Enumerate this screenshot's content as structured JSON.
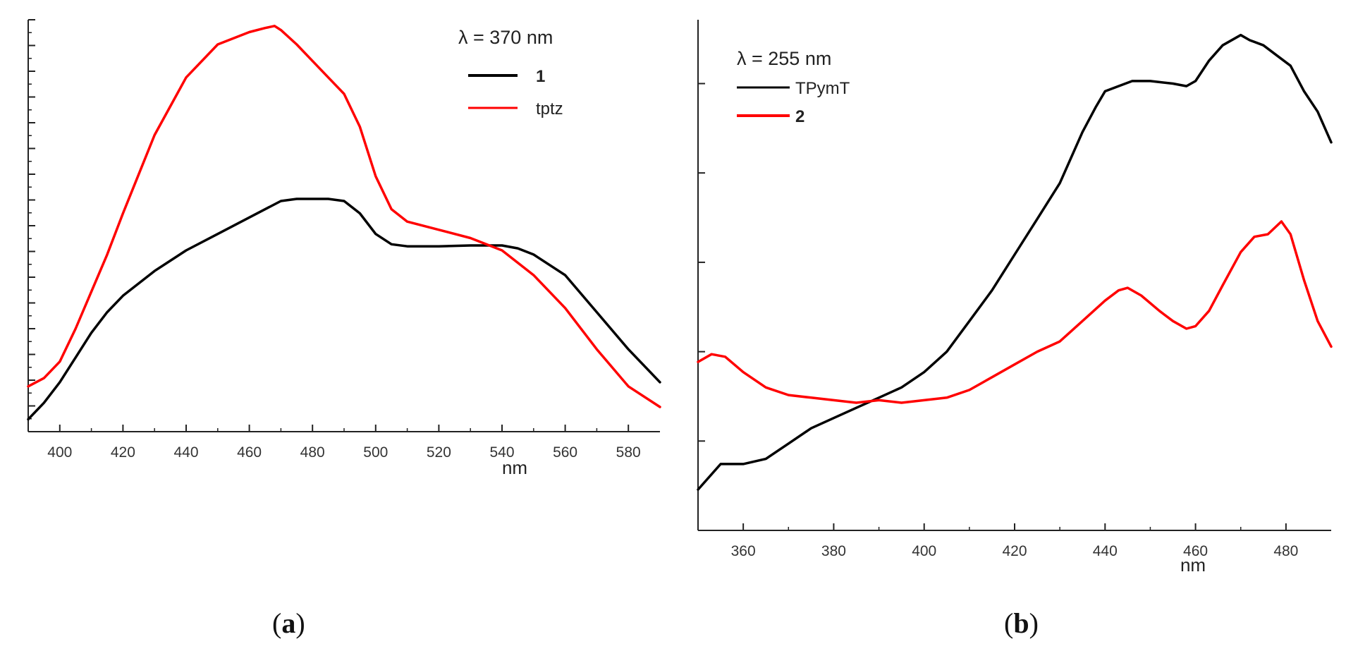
{
  "chart_data": [
    {
      "id": "a",
      "type": "line",
      "caption_letter": "a",
      "xlabel": "nm",
      "ylabel": "",
      "xlim": [
        390,
        590
      ],
      "ylim": [
        0,
        1.0
      ],
      "xticks": [
        400,
        420,
        440,
        460,
        480,
        500,
        520,
        540,
        560,
        580
      ],
      "legend": {
        "title": "λ = 370 nm",
        "position": "top-right"
      },
      "series": [
        {
          "name": "1",
          "color": "#000000",
          "bold_label": true,
          "x": [
            390,
            395,
            400,
            405,
            410,
            415,
            420,
            430,
            440,
            450,
            460,
            470,
            475,
            480,
            485,
            490,
            495,
            500,
            505,
            510,
            515,
            520,
            530,
            540,
            545,
            550,
            560,
            570,
            580,
            590
          ],
          "y": [
            0.03,
            0.07,
            0.12,
            0.18,
            0.24,
            0.29,
            0.33,
            0.39,
            0.44,
            0.48,
            0.52,
            0.56,
            0.565,
            0.565,
            0.565,
            0.56,
            0.53,
            0.48,
            0.455,
            0.45,
            0.45,
            0.45,
            0.452,
            0.452,
            0.445,
            0.43,
            0.38,
            0.29,
            0.2,
            0.12
          ]
        },
        {
          "name": "tptz",
          "color": "#ff0000",
          "bold_label": false,
          "x": [
            390,
            395,
            400,
            405,
            410,
            415,
            420,
            430,
            440,
            450,
            460,
            465,
            468,
            470,
            475,
            480,
            485,
            490,
            495,
            500,
            505,
            510,
            520,
            530,
            540,
            550,
            560,
            570,
            580,
            590
          ],
          "y": [
            0.11,
            0.13,
            0.17,
            0.25,
            0.34,
            0.43,
            0.53,
            0.72,
            0.86,
            0.94,
            0.97,
            0.98,
            0.985,
            0.975,
            0.94,
            0.9,
            0.86,
            0.82,
            0.74,
            0.62,
            0.54,
            0.51,
            0.49,
            0.47,
            0.44,
            0.38,
            0.3,
            0.2,
            0.11,
            0.06
          ]
        }
      ]
    },
    {
      "id": "b",
      "type": "line",
      "caption_letter": "b",
      "xlabel": "nm",
      "ylabel": "",
      "xlim": [
        350,
        490
      ],
      "ylim": [
        0,
        1.0
      ],
      "xticks": [
        360,
        380,
        400,
        420,
        440,
        460,
        480
      ],
      "legend": {
        "title": "λ = 255 nm",
        "position": "top-left"
      },
      "series": [
        {
          "name": "TPymT",
          "color": "#000000",
          "bold_label": false,
          "x": [
            350,
            355,
            360,
            365,
            370,
            375,
            380,
            385,
            390,
            395,
            400,
            405,
            410,
            415,
            420,
            425,
            430,
            435,
            438,
            440,
            443,
            446,
            450,
            455,
            458,
            460,
            463,
            466,
            470,
            472,
            475,
            478,
            481,
            484,
            487,
            490
          ],
          "y": [
            0.08,
            0.13,
            0.13,
            0.14,
            0.17,
            0.2,
            0.22,
            0.24,
            0.26,
            0.28,
            0.31,
            0.35,
            0.41,
            0.47,
            0.54,
            0.61,
            0.68,
            0.78,
            0.83,
            0.86,
            0.87,
            0.88,
            0.88,
            0.875,
            0.87,
            0.88,
            0.92,
            0.95,
            0.97,
            0.96,
            0.95,
            0.93,
            0.91,
            0.86,
            0.82,
            0.76
          ]
        },
        {
          "name": "2",
          "color": "#ff0000",
          "bold_label": true,
          "x": [
            350,
            353,
            356,
            360,
            365,
            370,
            375,
            380,
            385,
            390,
            395,
            400,
            405,
            410,
            415,
            420,
            425,
            430,
            435,
            440,
            443,
            445,
            448,
            452,
            455,
            458,
            460,
            463,
            466,
            470,
            473,
            476,
            479,
            481,
            484,
            487,
            490
          ],
          "y": [
            0.33,
            0.345,
            0.34,
            0.31,
            0.28,
            0.265,
            0.26,
            0.255,
            0.25,
            0.255,
            0.25,
            0.255,
            0.26,
            0.275,
            0.3,
            0.325,
            0.35,
            0.37,
            0.41,
            0.45,
            0.47,
            0.475,
            0.46,
            0.43,
            0.41,
            0.395,
            0.4,
            0.43,
            0.48,
            0.545,
            0.575,
            0.58,
            0.605,
            0.58,
            0.49,
            0.41,
            0.36
          ]
        }
      ]
    }
  ]
}
